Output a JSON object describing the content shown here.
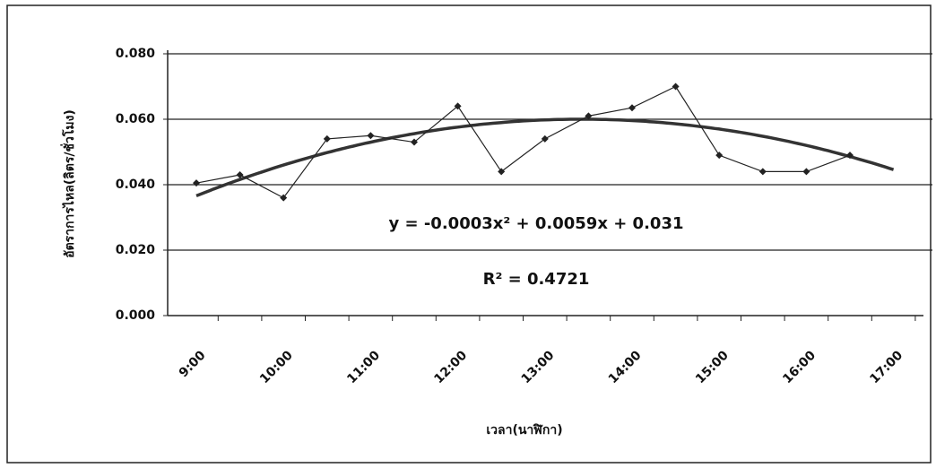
{
  "chart_data": {
    "type": "line",
    "y_label": "อัตราการไหล(ลิตร/ชั่วโมง)",
    "x_label": "เวลา(นาฬิกา)",
    "categories": [
      "9:00",
      null,
      "10:00",
      null,
      "11:00",
      null,
      "12:00",
      null,
      "13:00",
      null,
      "14:00",
      null,
      "15:00",
      null,
      "16:00",
      null,
      "17:00"
    ],
    "values": [
      0.0405,
      0.043,
      0.036,
      0.054,
      0.055,
      0.053,
      0.064,
      0.044,
      0.054,
      0.061,
      0.0635,
      0.07,
      0.049,
      0.044,
      0.044,
      0.049,
      null
    ],
    "color": "#222222",
    "trendline": {
      "coefficients": [
        -0.0003,
        0.0059,
        0.031
      ],
      "color": "#333333"
    },
    "annotations": [
      "y = -0.0003x² + 0.0059x + 0.031",
      "R² = 0.4721"
    ],
    "ylim": [
      0,
      0.08
    ],
    "yticks": [
      {
        "value": 0,
        "label": "0.000"
      },
      {
        "value": 0.02,
        "label": "0.020"
      },
      {
        "value": 0.04,
        "label": "0.040"
      },
      {
        "value": 0.06,
        "label": "0.060"
      },
      {
        "value": 0.08,
        "label": "0.080"
      }
    ],
    "grid": true
  }
}
